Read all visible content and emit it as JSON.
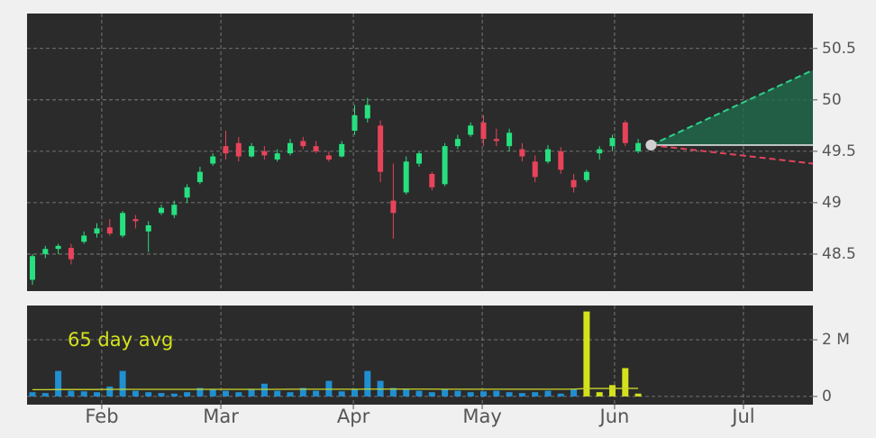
{
  "chart_data": [
    {
      "type": "candlestick",
      "categories": [
        null,
        null,
        null,
        null,
        null,
        null,
        null,
        null,
        null,
        null,
        null,
        null,
        null,
        null,
        null,
        null,
        null,
        null,
        null,
        null,
        null,
        null,
        null,
        null,
        null,
        null,
        null,
        null,
        null,
        null,
        null,
        null,
        null,
        null,
        null,
        null,
        null,
        null,
        null,
        null,
        null,
        null,
        null,
        null,
        null,
        null,
        null,
        null
      ],
      "open": [
        48.25,
        48.5,
        48.55,
        48.56,
        48.62,
        48.7,
        48.76,
        48.68,
        48.84,
        48.72,
        48.9,
        48.88,
        49.05,
        49.2,
        49.38,
        49.55,
        49.58,
        49.45,
        49.5,
        49.42,
        49.48,
        49.6,
        49.55,
        49.46,
        49.45,
        49.7,
        49.82,
        49.75,
        49.02,
        49.1,
        49.38,
        49.28,
        49.18,
        49.55,
        49.66,
        49.78,
        49.62,
        49.55,
        49.52,
        49.4,
        49.4,
        49.5,
        49.22,
        49.22,
        49.48,
        49.55,
        49.78,
        49.5
      ],
      "high": [
        48.5,
        48.58,
        48.6,
        48.6,
        48.72,
        48.8,
        48.84,
        48.92,
        48.88,
        48.82,
        48.98,
        49.02,
        49.18,
        49.35,
        49.48,
        49.7,
        49.64,
        49.58,
        49.55,
        49.52,
        49.62,
        49.64,
        49.6,
        49.5,
        49.6,
        49.95,
        50.02,
        49.8,
        49.38,
        49.45,
        49.5,
        49.3,
        49.58,
        49.66,
        49.78,
        49.85,
        49.72,
        49.72,
        49.58,
        49.46,
        49.56,
        49.54,
        49.28,
        49.32,
        49.55,
        49.66,
        49.8,
        49.62
      ],
      "low": [
        48.2,
        48.46,
        48.5,
        48.4,
        48.6,
        48.66,
        48.68,
        48.66,
        48.75,
        48.52,
        48.88,
        48.85,
        49.0,
        49.18,
        49.36,
        49.42,
        49.4,
        49.44,
        49.42,
        49.4,
        49.46,
        49.52,
        49.48,
        49.4,
        49.44,
        49.66,
        49.78,
        49.2,
        48.65,
        49.08,
        49.35,
        49.12,
        49.16,
        49.52,
        49.64,
        49.55,
        49.55,
        49.5,
        49.4,
        49.2,
        49.38,
        49.28,
        49.1,
        49.2,
        49.42,
        49.5,
        49.55,
        49.48
      ],
      "close": [
        48.48,
        48.55,
        48.58,
        48.45,
        48.68,
        48.75,
        48.7,
        48.9,
        48.82,
        48.78,
        48.95,
        48.98,
        49.15,
        49.3,
        49.45,
        49.48,
        49.45,
        49.55,
        49.46,
        49.48,
        49.58,
        49.55,
        49.5,
        49.42,
        49.57,
        49.85,
        49.95,
        49.3,
        48.9,
        49.4,
        49.48,
        49.15,
        49.55,
        49.62,
        49.75,
        49.62,
        49.6,
        49.68,
        49.45,
        49.25,
        49.52,
        49.32,
        49.15,
        49.3,
        49.52,
        49.63,
        49.58,
        49.58
      ],
      "up_color": "#26e07f",
      "down_color": "#e8435a",
      "forecast": {
        "x": [
          48,
          60.56
        ],
        "upper": [
          49.56,
          50.29
        ],
        "lower": [
          49.56,
          49.38
        ],
        "upper_color": "#2ed18b",
        "lower_color": "#e0455c",
        "fill": "#1f6b4c",
        "point_color": "#d0d0d0"
      },
      "xlim": [
        -0.42,
        60.56
      ],
      "xticks": [
        {
          "value": 5.38,
          "label": "Feb"
        },
        {
          "value": 14.62,
          "label": "Mar"
        },
        {
          "value": 24.9,
          "label": "Apr"
        },
        {
          "value": 34.9,
          "label": "May"
        },
        {
          "value": 45.17,
          "label": "Jun"
        },
        {
          "value": 55.17,
          "label": "Jul"
        }
      ],
      "ylim": [
        48.14,
        50.84
      ],
      "yticks": [
        48.5,
        49.0,
        49.5,
        50.0,
        50.5
      ],
      "grid": true
    },
    {
      "type": "bar",
      "values": [
        150000,
        120000,
        900000,
        200000,
        180000,
        150000,
        350000,
        900000,
        200000,
        150000,
        120000,
        100000,
        150000,
        300000,
        250000,
        200000,
        150000,
        250000,
        450000,
        200000,
        150000,
        300000,
        200000,
        550000,
        180000,
        250000,
        900000,
        550000,
        300000,
        250000,
        200000,
        150000,
        250000,
        200000,
        150000,
        180000,
        200000,
        150000,
        120000,
        150000,
        200000,
        100000,
        250000,
        3000000,
        150000,
        400000,
        1000000,
        100000
      ],
      "colors": [
        "#1f8fd1",
        "#1f8fd1",
        "#1f8fd1",
        "#1f8fd1",
        "#1f8fd1",
        "#1f8fd1",
        "#1f8fd1",
        "#1f8fd1",
        "#1f8fd1",
        "#1f8fd1",
        "#1f8fd1",
        "#1f8fd1",
        "#1f8fd1",
        "#1f8fd1",
        "#1f8fd1",
        "#1f8fd1",
        "#1f8fd1",
        "#1f8fd1",
        "#1f8fd1",
        "#1f8fd1",
        "#1f8fd1",
        "#1f8fd1",
        "#1f8fd1",
        "#1f8fd1",
        "#1f8fd1",
        "#1f8fd1",
        "#1f8fd1",
        "#1f8fd1",
        "#1f8fd1",
        "#1f8fd1",
        "#1f8fd1",
        "#1f8fd1",
        "#1f8fd1",
        "#1f8fd1",
        "#1f8fd1",
        "#1f8fd1",
        "#1f8fd1",
        "#1f8fd1",
        "#1f8fd1",
        "#1f8fd1",
        "#1f8fd1",
        "#1f8fd1",
        "#1f8fd1",
        "#d4e21c",
        "#d4e21c",
        "#d4e21c",
        "#d4e21c",
        "#d4e21c"
      ],
      "avg": [
        240000,
        240000,
        245000,
        245000,
        245000,
        245000,
        250000,
        250000,
        250000,
        250000,
        250000,
        250000,
        250000,
        250000,
        250000,
        250000,
        250000,
        250000,
        250000,
        250000,
        255000,
        255000,
        255000,
        255000,
        255000,
        255000,
        260000,
        260000,
        260000,
        260000,
        260000,
        260000,
        255000,
        255000,
        255000,
        255000,
        255000,
        255000,
        255000,
        255000,
        255000,
        255000,
        260000,
        280000,
        280000,
        280000,
        285000,
        285000
      ],
      "avg_color": "#c9d62a",
      "avg_label": "65 day avg",
      "ylim": [
        -290000,
        3210000
      ],
      "yticks": [
        0,
        {
          "value": 2000000,
          "label": "2 M"
        }
      ],
      "grid": true
    }
  ]
}
